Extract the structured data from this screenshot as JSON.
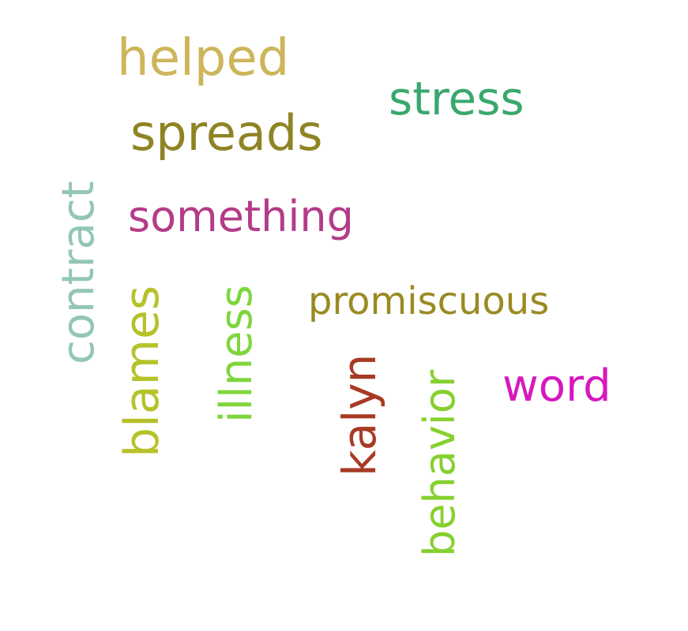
{
  "word_cloud": {
    "words": [
      {
        "text": "helped",
        "color": "#cdb65a",
        "orientation": "horizontal"
      },
      {
        "text": "stress",
        "color": "#3aa86e",
        "orientation": "horizontal"
      },
      {
        "text": "spreads",
        "color": "#8f8424",
        "orientation": "horizontal"
      },
      {
        "text": "something",
        "color": "#b43c88",
        "orientation": "horizontal"
      },
      {
        "text": "contract",
        "color": "#93c6b8",
        "orientation": "vertical"
      },
      {
        "text": "blames",
        "color": "#b6c22a",
        "orientation": "vertical"
      },
      {
        "text": "illness",
        "color": "#7fd63c",
        "orientation": "vertical"
      },
      {
        "text": "promiscuous",
        "color": "#9a8a22",
        "orientation": "horizontal"
      },
      {
        "text": "kalyn",
        "color": "#a83a24",
        "orientation": "vertical"
      },
      {
        "text": "behavior",
        "color": "#86d030",
        "orientation": "vertical"
      },
      {
        "text": "word",
        "color": "#d618c0",
        "orientation": "horizontal"
      }
    ]
  }
}
